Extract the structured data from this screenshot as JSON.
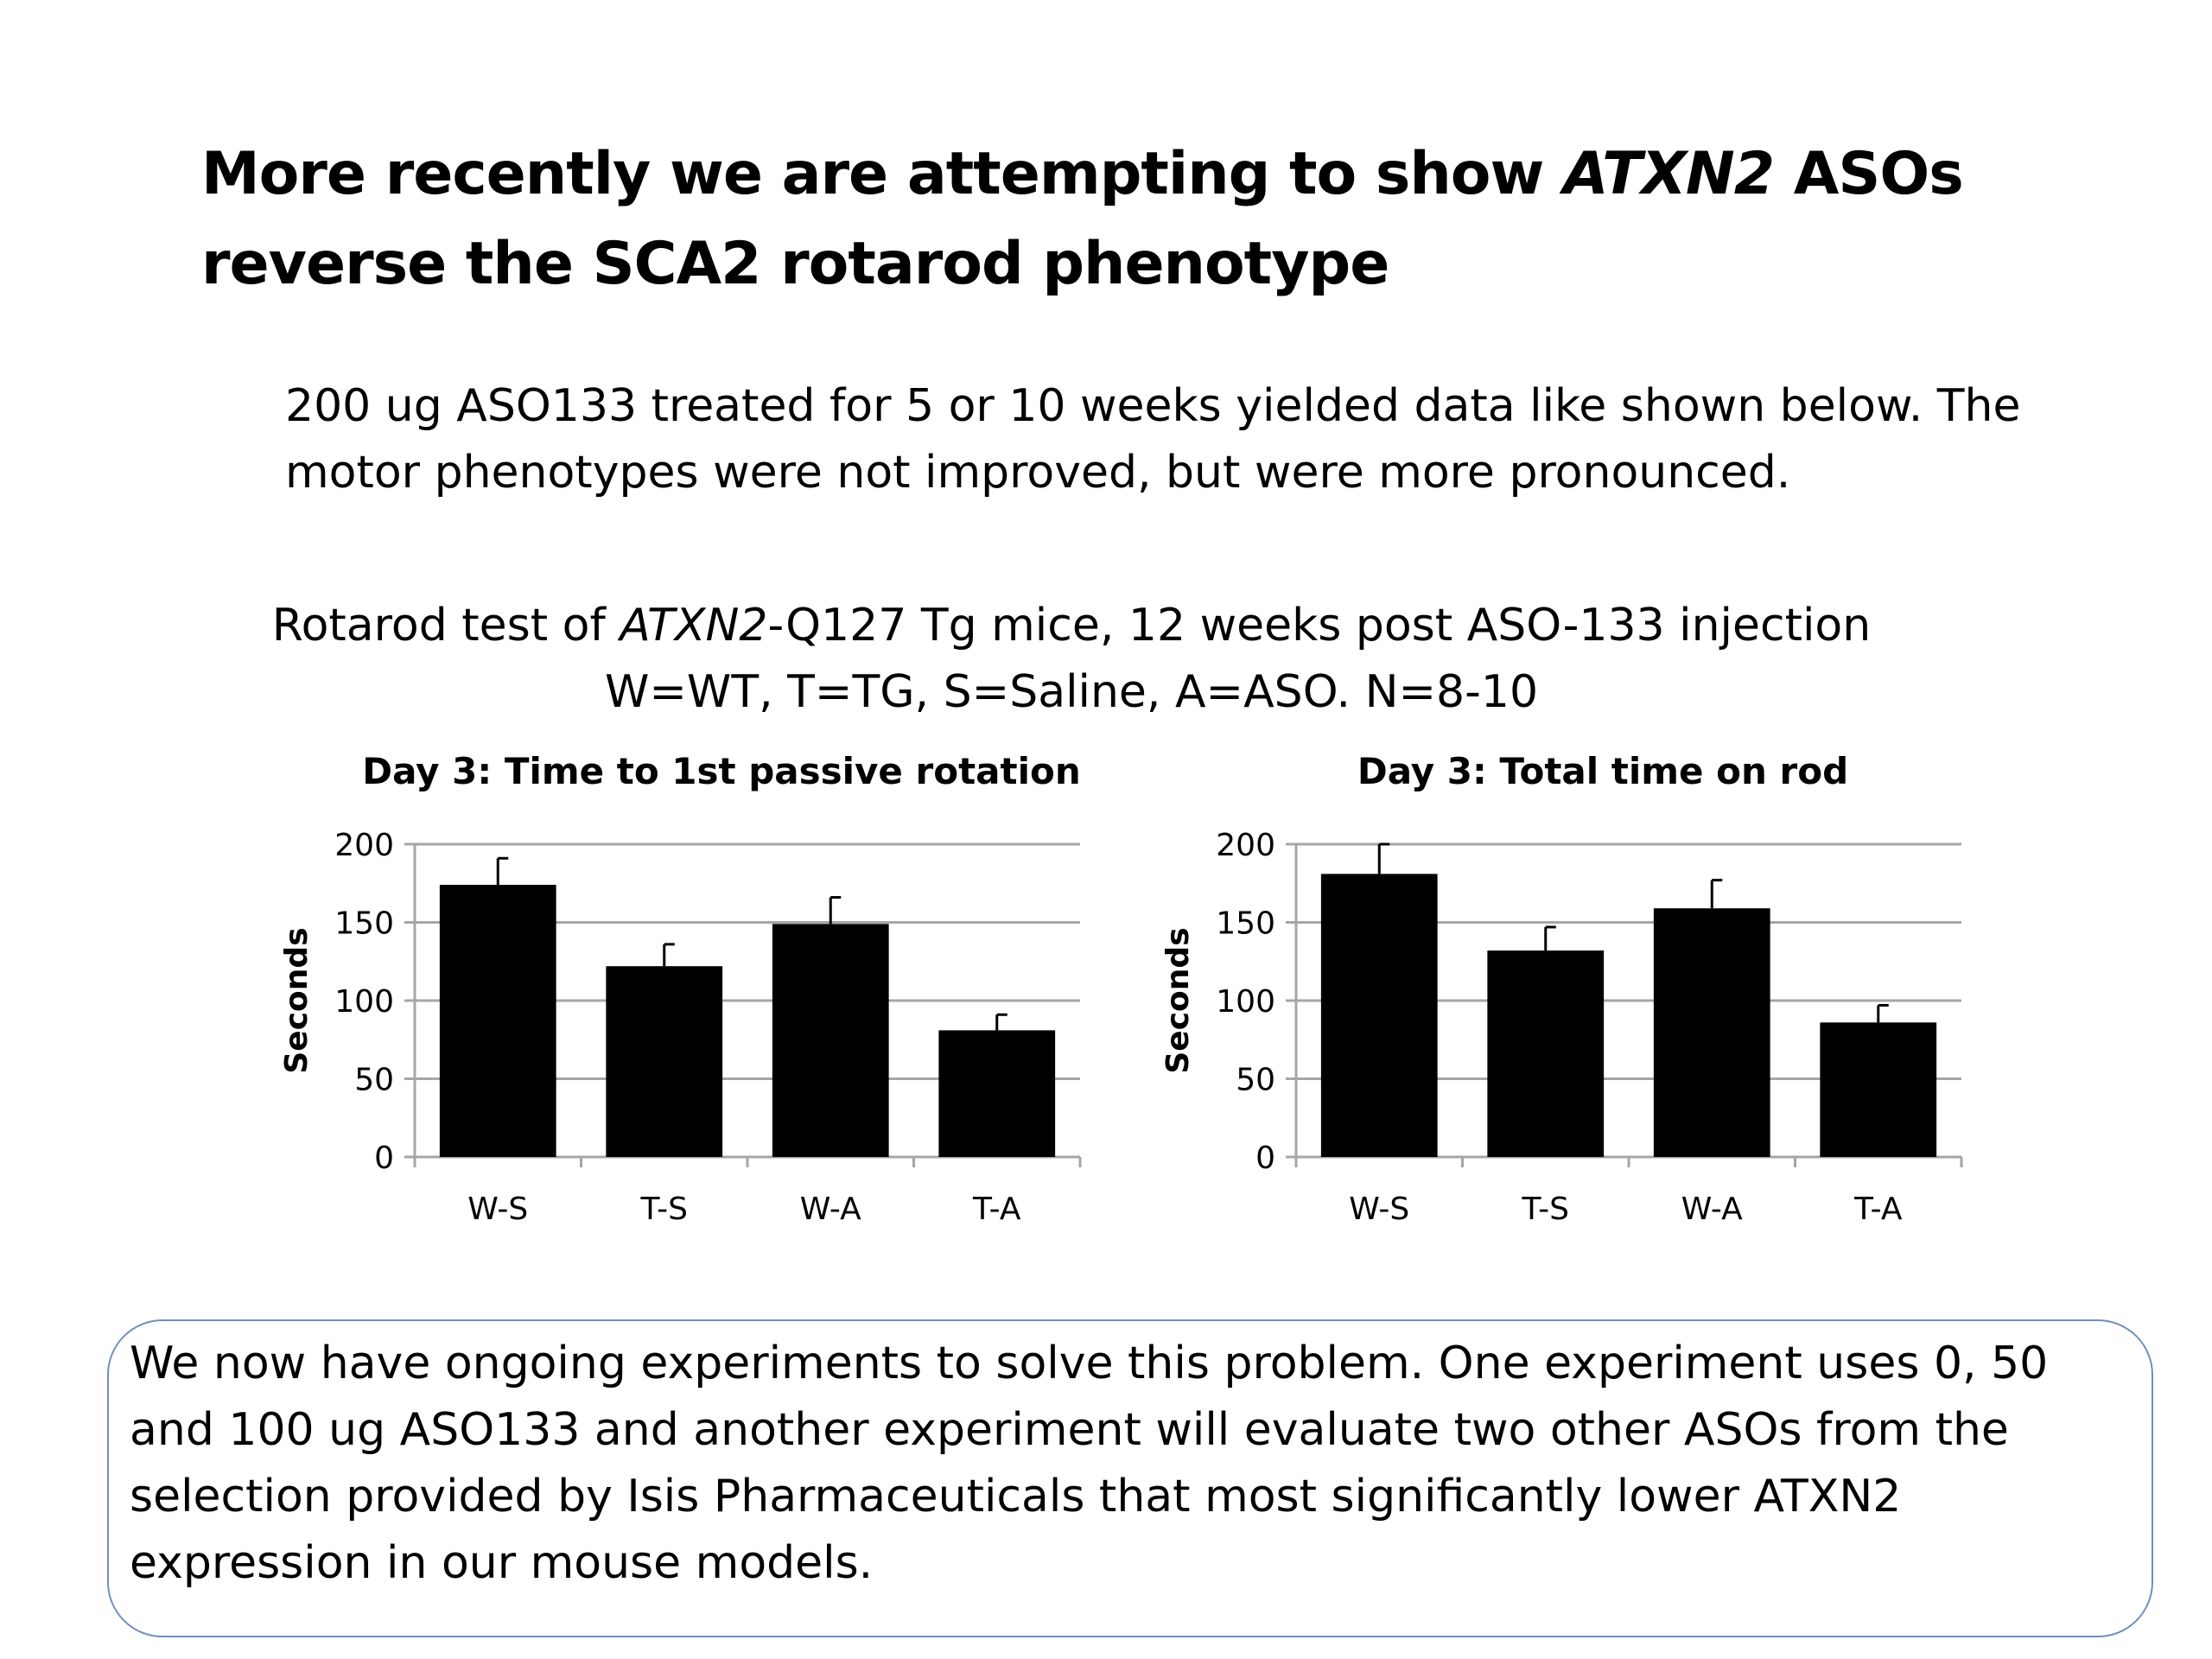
{
  "slide": {
    "title": {
      "line1_before": "More recently we are attempting to show ",
      "line1_italic": "ATXN2",
      "line1_after": " ASOs",
      "line2": "reverse the SCA2 rotarod phenotype"
    },
    "body": {
      "line1": "200 ug ASO133 treated for 5 or 10 weeks yielded data like shown below.  The",
      "line2": "motor phenotypes were not improved, but were more pronounced."
    },
    "figure_caption": {
      "line1_before": "Rotarod test of ",
      "line1_italic": "ATXN2",
      "line1_after": "-Q127 Tg mice, 12 weeks post ASO-133 injection",
      "line2": "W=WT, T=TG, S=Saline, A=ASO.  N=8-10"
    },
    "note": {
      "line1": "We now have ongoing experiments to solve this problem.  One experiment uses 0, 50",
      "line2": "and 100 ug ASO133 and another experiment will evaluate two other ASOs from the",
      "line3": "selection provided by Isis Pharmaceuticals that most significantly lower ATXN2",
      "line4": "expression in our mouse models."
    }
  },
  "colors": {
    "bar": "#000000",
    "grid": "#a6a6a6",
    "note_border": "#6f8fbf"
  },
  "chart_data": [
    {
      "type": "bar",
      "title": "Day 3:  Time to 1st passive rotation",
      "xlabel": "",
      "ylabel": "Seconds",
      "categories": [
        "W-S",
        "T-S",
        "W-A",
        "T-A"
      ],
      "values": [
        174,
        122,
        149,
        81
      ],
      "error": [
        17,
        14,
        17,
        10
      ],
      "ylim": [
        0,
        200
      ],
      "yticks": [
        0,
        50,
        100,
        150,
        200
      ],
      "grid": true,
      "legend": "none"
    },
    {
      "type": "bar",
      "title": "Day 3:  Total time on rod",
      "xlabel": "",
      "ylabel": "Seconds",
      "categories": [
        "W-S",
        "T-S",
        "W-A",
        "T-A"
      ],
      "values": [
        181,
        132,
        159,
        86
      ],
      "error": [
        19,
        15,
        18,
        11
      ],
      "ylim": [
        0,
        200
      ],
      "yticks": [
        0,
        50,
        100,
        150,
        200
      ],
      "grid": true,
      "legend": "none"
    }
  ]
}
